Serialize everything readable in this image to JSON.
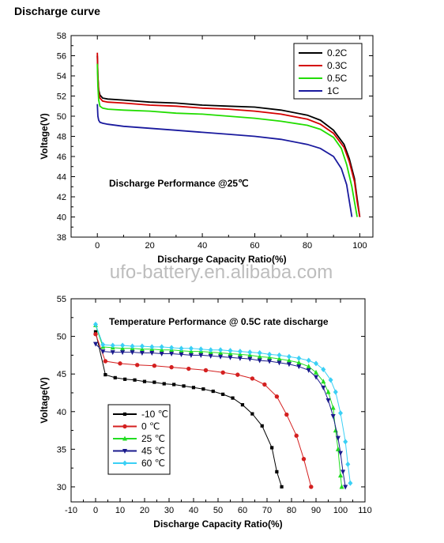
{
  "page": {
    "title": "Discharge curve",
    "watermark": "ufo-battery.en.alibaba.com"
  },
  "chart_data": [
    {
      "type": "line",
      "title": "",
      "annotation": "Discharge Performance @25℃",
      "xlabel": "Discharge Capacity Ratio(%)",
      "ylabel": "Voltage(V)",
      "xlim": [
        -10,
        105
      ],
      "ylim": [
        38,
        58
      ],
      "xticks": [
        0,
        20,
        40,
        60,
        80,
        100
      ],
      "yticks": [
        38,
        40,
        42,
        44,
        46,
        48,
        50,
        52,
        54,
        56,
        58
      ],
      "legend_position": "top-right",
      "series": [
        {
          "name": "0.2C",
          "color": "#000000",
          "x": [
            0,
            0.2,
            0.5,
            1,
            2,
            4,
            10,
            20,
            30,
            40,
            50,
            60,
            70,
            80,
            85,
            90,
            94,
            96,
            98,
            99,
            100
          ],
          "y": [
            56.0,
            54.0,
            52.6,
            52.1,
            51.8,
            51.7,
            51.6,
            51.4,
            51.3,
            51.1,
            51.0,
            50.9,
            50.6,
            50.1,
            49.6,
            48.6,
            47.2,
            45.8,
            43.8,
            41.8,
            40.0
          ]
        },
        {
          "name": "0.3C",
          "color": "#d40000",
          "x": [
            0,
            0.2,
            0.5,
            1,
            2,
            4,
            10,
            20,
            30,
            40,
            50,
            60,
            70,
            80,
            85,
            90,
            94,
            96,
            98,
            99,
            100
          ],
          "y": [
            56.3,
            54.0,
            52.4,
            51.8,
            51.5,
            51.4,
            51.3,
            51.1,
            51.0,
            50.8,
            50.7,
            50.5,
            50.2,
            49.7,
            49.2,
            48.3,
            46.9,
            45.5,
            43.5,
            41.5,
            40.0
          ]
        },
        {
          "name": "0.5C",
          "color": "#22dd00",
          "x": [
            0,
            0.2,
            0.5,
            1,
            2,
            4,
            10,
            20,
            30,
            40,
            50,
            60,
            70,
            80,
            85,
            90,
            93,
            95,
            97,
            98,
            99
          ],
          "y": [
            55.2,
            53.0,
            51.6,
            51.0,
            50.8,
            50.7,
            50.6,
            50.5,
            50.3,
            50.2,
            50.0,
            49.8,
            49.5,
            49.1,
            48.7,
            47.9,
            46.8,
            45.2,
            43.0,
            41.5,
            40.0
          ]
        },
        {
          "name": "1C",
          "color": "#1a1a9e",
          "x": [
            0,
            0.2,
            0.5,
            1,
            2,
            4,
            10,
            20,
            30,
            40,
            50,
            60,
            70,
            80,
            85,
            90,
            93,
            95,
            96,
            97
          ],
          "y": [
            51.2,
            50.0,
            49.6,
            49.4,
            49.3,
            49.2,
            49.0,
            48.8,
            48.6,
            48.4,
            48.2,
            48.0,
            47.7,
            47.2,
            46.8,
            46.0,
            44.8,
            43.2,
            41.6,
            40.0
          ]
        }
      ]
    },
    {
      "type": "line",
      "title": "",
      "annotation": "Temperature Performance @ 0.5C rate discharge",
      "xlabel": "Discharge Capacity Ratio(%)",
      "ylabel": "Voltage(V)",
      "xlim": [
        -10,
        110
      ],
      "ylim": [
        28,
        55
      ],
      "xticks": [
        -10,
        0,
        10,
        20,
        30,
        40,
        50,
        60,
        70,
        80,
        90,
        100,
        110
      ],
      "yticks": [
        30,
        35,
        40,
        45,
        50,
        55
      ],
      "legend_position": "bottom-left",
      "series": [
        {
          "name": "-10 ℃",
          "color": "#000000",
          "marker": "square",
          "x": [
            0,
            4,
            8,
            12,
            16,
            20,
            24,
            28,
            32,
            36,
            40,
            44,
            48,
            52,
            56,
            60,
            64,
            68,
            72,
            74,
            76
          ],
          "y": [
            50.6,
            44.9,
            44.5,
            44.3,
            44.2,
            44.0,
            43.9,
            43.7,
            43.6,
            43.4,
            43.2,
            43.0,
            42.7,
            42.3,
            41.8,
            40.9,
            39.7,
            38.1,
            35.2,
            32.0,
            30.0
          ]
        },
        {
          "name": "0 ℃",
          "color": "#d42020",
          "marker": "circle",
          "x": [
            0,
            4,
            10,
            17,
            24,
            31,
            38,
            45,
            52,
            58,
            64,
            69,
            74,
            78,
            82,
            85,
            88
          ],
          "y": [
            50.3,
            46.7,
            46.4,
            46.2,
            46.1,
            45.9,
            45.7,
            45.5,
            45.2,
            44.9,
            44.4,
            43.6,
            42.0,
            39.6,
            36.8,
            33.7,
            30.0
          ]
        },
        {
          "name": "25 ℃",
          "color": "#22dd22",
          "marker": "triangle-up",
          "x": [
            0,
            3,
            7,
            11,
            15,
            19,
            23,
            27,
            31,
            35,
            39,
            43,
            47,
            51,
            55,
            59,
            63,
            67,
            71,
            75,
            79,
            83,
            87,
            90,
            93,
            95,
            97,
            98,
            99,
            100,
            100.5
          ],
          "y": [
            51.5,
            48.6,
            48.5,
            48.4,
            48.4,
            48.3,
            48.3,
            48.2,
            48.2,
            48.1,
            48.0,
            48.0,
            47.9,
            47.8,
            47.7,
            47.6,
            47.5,
            47.3,
            47.2,
            47.0,
            46.8,
            46.5,
            46.0,
            45.2,
            44.0,
            42.6,
            40.5,
            37.5,
            35.0,
            31.5,
            30.0
          ]
        },
        {
          "name": "45 ℃",
          "color": "#1a1a8c",
          "marker": "triangle-down",
          "x": [
            0,
            3,
            7,
            11,
            15,
            19,
            23,
            27,
            31,
            35,
            39,
            43,
            47,
            51,
            55,
            59,
            63,
            67,
            71,
            75,
            79,
            83,
            87,
            90,
            93,
            95,
            97,
            99,
            100,
            101,
            102
          ],
          "y": [
            49.0,
            48.0,
            47.9,
            47.9,
            47.9,
            47.8,
            47.8,
            47.7,
            47.7,
            47.6,
            47.5,
            47.5,
            47.4,
            47.3,
            47.2,
            47.1,
            47.0,
            46.8,
            46.7,
            46.5,
            46.3,
            46.0,
            45.5,
            44.6,
            43.2,
            41.5,
            39.4,
            36.5,
            34.5,
            32.0,
            30.0
          ]
        },
        {
          "name": "60 ℃",
          "color": "#3ad0f5",
          "marker": "diamond",
          "x": [
            0,
            3,
            7,
            11,
            15,
            19,
            23,
            27,
            31,
            35,
            39,
            43,
            47,
            51,
            55,
            59,
            63,
            67,
            71,
            75,
            79,
            83,
            87,
            90,
            93,
            96,
            98,
            100,
            102,
            103,
            104
          ],
          "y": [
            51.6,
            48.9,
            48.8,
            48.8,
            48.7,
            48.7,
            48.6,
            48.6,
            48.5,
            48.4,
            48.4,
            48.3,
            48.2,
            48.2,
            48.1,
            48.0,
            47.9,
            47.8,
            47.6,
            47.5,
            47.3,
            47.1,
            46.8,
            46.4,
            45.6,
            44.2,
            42.6,
            39.8,
            36.0,
            33.0,
            30.5
          ]
        }
      ]
    }
  ]
}
